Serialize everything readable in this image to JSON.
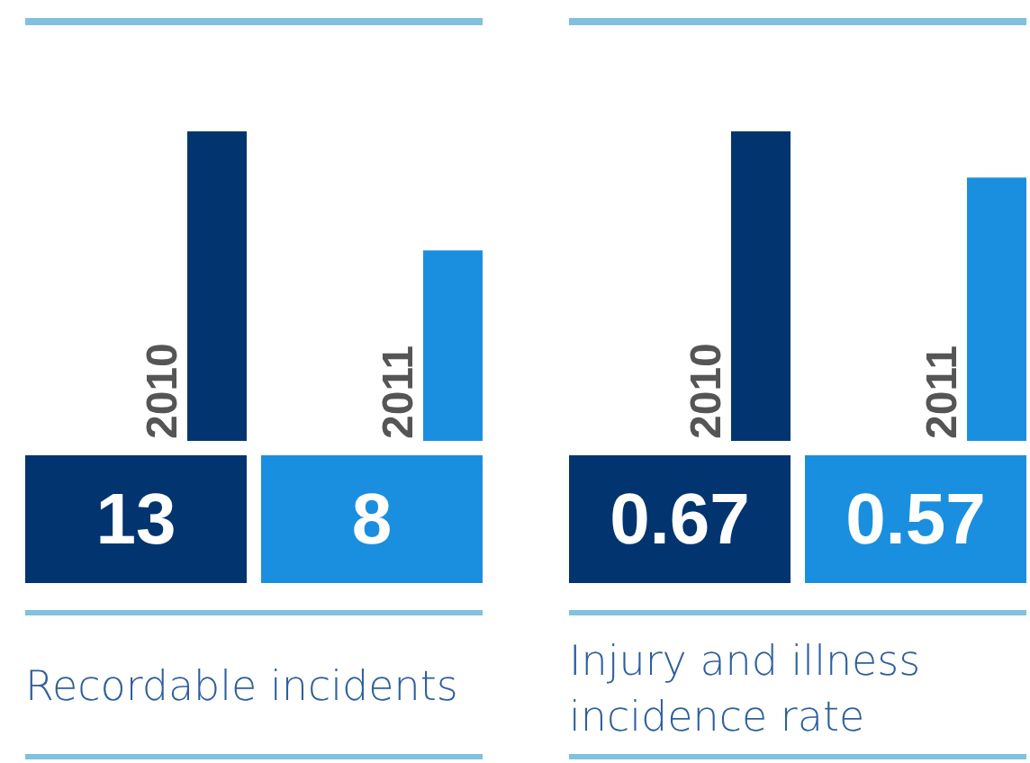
{
  "chart_data": [
    {
      "type": "bar",
      "title": "Recordable incidents",
      "categories": [
        "2010",
        "2011"
      ],
      "values": [
        13,
        8
      ],
      "colors": [
        "#02356f",
        "#1a8fdf"
      ],
      "data_labels": true
    },
    {
      "type": "bar",
      "title": "Injury and illness incidence rate",
      "categories": [
        "2010",
        "2011"
      ],
      "values": [
        0.67,
        0.57
      ],
      "colors": [
        "#02356f",
        "#1a8fdf"
      ],
      "data_labels": true
    }
  ]
}
